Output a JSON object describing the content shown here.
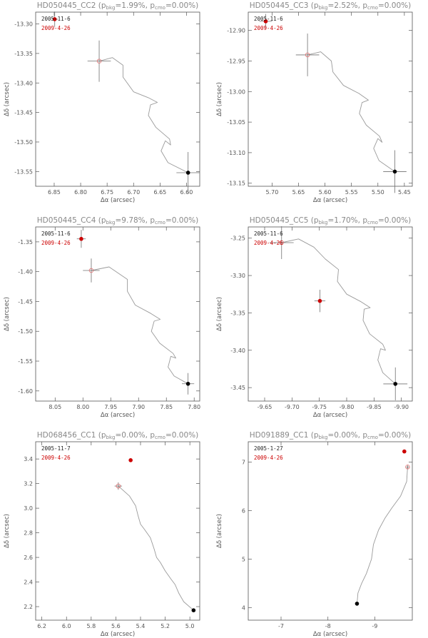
{
  "colors": {
    "frame": "#555555",
    "track": "#9a9a9a",
    "first_epoch": "#000000",
    "second_epoch": "#cc0000",
    "predicted": "#e07070",
    "errorbar": "#707070",
    "title": "#888888"
  },
  "chart_data": [
    {
      "type": "scatter",
      "title": "HD050445_CC2 (p_bkg=1.99%, p_cmo=0.00%)",
      "title_main": "HD050445_CC2 (p",
      "title_sub1": "bkg",
      "title_mid": "=1.99%, p",
      "title_sub2": "cmo",
      "title_end": "=0.00%)",
      "xlabel": "Δα (arcsec)",
      "ylabel": "Δδ (arcsec)",
      "xlim": [
        6.885,
        6.575
      ],
      "ylim": [
        -13.575,
        -13.28
      ],
      "xticks": [
        6.85,
        6.8,
        6.75,
        6.7,
        6.65,
        6.6
      ],
      "xtick_labels": [
        "6.85",
        "6.80",
        "6.75",
        "6.70",
        "6.65",
        "6.60"
      ],
      "yticks": [
        -13.3,
        -13.35,
        -13.4,
        -13.45,
        -13.5,
        -13.55
      ],
      "ytick_labels": [
        "-13.30",
        "-13.35",
        "-13.40",
        "-13.45",
        "-13.50",
        "-13.55"
      ],
      "legend": [
        "2005-11-6",
        "2009-4-26"
      ],
      "legend_placement": "top-left",
      "first_epoch": {
        "x": 6.597,
        "y": -13.552,
        "xerr": 0.022,
        "yerr": 0.035
      },
      "second_epoch": {
        "x": 6.849,
        "y": -13.292,
        "xerr": 0.006,
        "yerr": 0.013
      },
      "predicted": {
        "x": 6.765,
        "y": -13.363,
        "xerr": 0.022,
        "yerr": 0.035
      },
      "track": [
        [
          6.597,
          -13.552
        ],
        [
          6.635,
          -13.535
        ],
        [
          6.648,
          -13.515
        ],
        [
          6.64,
          -13.498
        ],
        [
          6.63,
          -13.505
        ],
        [
          6.632,
          -13.495
        ],
        [
          6.658,
          -13.475
        ],
        [
          6.672,
          -13.455
        ],
        [
          6.668,
          -13.437
        ],
        [
          6.655,
          -13.433
        ],
        [
          6.672,
          -13.425
        ],
        [
          6.7,
          -13.415
        ],
        [
          6.72,
          -13.39
        ],
        [
          6.72,
          -13.37
        ],
        [
          6.74,
          -13.357
        ],
        [
          6.765,
          -13.363
        ]
      ]
    },
    {
      "type": "scatter",
      "title": "HD050445_CC3 (p_bkg=2.52%, p_cmo=0.00%)",
      "title_main": "HD050445_CC3 (p",
      "title_sub1": "bkg",
      "title_mid": "=2.52%, p",
      "title_sub2": "cmo",
      "title_end": "=0.00%)",
      "xlabel": "Δα (arcsec)",
      "ylabel": "Δδ (arcsec)",
      "xlim": [
        5.745,
        5.435
      ],
      "ylim": [
        -13.155,
        -12.87
      ],
      "xticks": [
        5.7,
        5.65,
        5.6,
        5.55,
        5.5,
        5.45
      ],
      "xtick_labels": [
        "5.70",
        "5.65",
        "5.60",
        "5.55",
        "5.50",
        "5.45"
      ],
      "yticks": [
        -12.9,
        -12.95,
        -13.0,
        -13.05,
        -13.1,
        -13.15
      ],
      "ytick_labels": [
        "-12.90",
        "-12.95",
        "-13.00",
        "-13.05",
        "-13.10",
        "-13.15"
      ],
      "legend": [
        "2005-11-6",
        "2009-4-26"
      ],
      "legend_placement": "top-left",
      "first_epoch": {
        "x": 5.468,
        "y": -13.131,
        "xerr": 0.022,
        "yerr": 0.035
      },
      "second_epoch": {
        "x": 5.712,
        "y": -12.885,
        "xerr": 0.012,
        "yerr": 0.012
      },
      "predicted": {
        "x": 5.633,
        "y": -12.94,
        "xerr": 0.022,
        "yerr": 0.035
      },
      "track": [
        [
          5.468,
          -13.131
        ],
        [
          5.498,
          -13.113
        ],
        [
          5.508,
          -13.093
        ],
        [
          5.5,
          -13.077
        ],
        [
          5.492,
          -13.083
        ],
        [
          5.497,
          -13.073
        ],
        [
          5.522,
          -13.055
        ],
        [
          5.535,
          -13.036
        ],
        [
          5.53,
          -13.018
        ],
        [
          5.518,
          -13.014
        ],
        [
          5.536,
          -13.003
        ],
        [
          5.565,
          -12.99
        ],
        [
          5.585,
          -12.968
        ],
        [
          5.588,
          -12.95
        ],
        [
          5.608,
          -12.935
        ],
        [
          5.633,
          -12.94
        ]
      ]
    },
    {
      "type": "scatter",
      "title": "HD050445_CC4 (p_bkg=9.78%, p_cmo=0.00%)",
      "title_main": "HD050445_CC4 (p",
      "title_sub1": "bkg",
      "title_mid": "=9.78%, p",
      "title_sub2": "cmo",
      "title_end": "=0.00%)",
      "xlabel": "Δα (arcsec)",
      "ylabel": "Δδ (arcsec)",
      "xlim": [
        8.085,
        7.79
      ],
      "ylim": [
        -1.617,
        -1.325
      ],
      "xticks": [
        8.05,
        8.0,
        7.95,
        7.9,
        7.85,
        7.8
      ],
      "xtick_labels": [
        "8.05",
        "8.00",
        "7.95",
        "7.90",
        "7.85",
        "7.80"
      ],
      "yticks": [
        -1.35,
        -1.4,
        -1.45,
        -1.5,
        -1.55,
        -1.6
      ],
      "ytick_labels": [
        "-1.35",
        "-1.40",
        "-1.45",
        "-1.50",
        "-1.55",
        "-1.60"
      ],
      "legend": [
        "2005-11-6",
        "2009-4-26"
      ],
      "legend_placement": "top-left",
      "first_epoch": {
        "x": 7.811,
        "y": -1.588,
        "xerr": 0.011,
        "yerr": 0.018
      },
      "second_epoch": {
        "x": 8.003,
        "y": -1.345,
        "xerr": 0.008,
        "yerr": 0.015
      },
      "predicted": {
        "x": 7.985,
        "y": -1.398,
        "xerr": 0.015,
        "yerr": 0.02
      },
      "track": [
        [
          7.811,
          -1.588
        ],
        [
          7.836,
          -1.575
        ],
        [
          7.847,
          -1.56
        ],
        [
          7.842,
          -1.542
        ],
        [
          7.833,
          -1.545
        ],
        [
          7.838,
          -1.537
        ],
        [
          7.862,
          -1.52
        ],
        [
          7.877,
          -1.5
        ],
        [
          7.872,
          -1.483
        ],
        [
          7.861,
          -1.48
        ],
        [
          7.878,
          -1.47
        ],
        [
          7.906,
          -1.456
        ],
        [
          7.92,
          -1.433
        ],
        [
          7.92,
          -1.413
        ],
        [
          7.953,
          -1.392
        ],
        [
          7.985,
          -1.398
        ]
      ]
    },
    {
      "type": "scatter",
      "title": "HD050445_CC5 (p_bkg=1.70%, p_cmo=0.00%)",
      "title_main": "HD050445_CC5 (p",
      "title_sub1": "bkg",
      "title_mid": "=1.70%, p",
      "title_sub2": "cmo",
      "title_end": "=0.00%)",
      "xlabel": "Δα (arcsec)",
      "ylabel": "Δδ (arcsec)",
      "xlim": [
        -9.62,
        -9.92
      ],
      "ylim": [
        -3.468,
        -3.235
      ],
      "xticks": [
        -9.65,
        -9.7,
        -9.75,
        -9.8,
        -9.85,
        -9.9
      ],
      "xtick_labels": [
        "-9.65",
        "-9.70",
        "-9.75",
        "-9.80",
        "-9.85",
        "-9.90"
      ],
      "yticks": [
        -3.25,
        -3.3,
        -3.35,
        -3.4,
        -3.45
      ],
      "ytick_labels": [
        "-3.25",
        "-3.30",
        "-3.35",
        "-3.40",
        "-3.45"
      ],
      "legend": [
        "2005-11-6",
        "2009-4-26"
      ],
      "legend_placement": "top-left",
      "first_epoch": {
        "x": -9.889,
        "y": -3.445,
        "xerr": 0.022,
        "yerr": 0.022
      },
      "second_epoch": {
        "x": -9.751,
        "y": -3.334,
        "xerr": 0.01,
        "yerr": 0.015
      },
      "predicted": {
        "x": -9.681,
        "y": -3.256,
        "xerr": 0.022,
        "yerr": 0.022
      },
      "track": [
        [
          -9.889,
          -3.445
        ],
        [
          -9.866,
          -3.43
        ],
        [
          -9.857,
          -3.413
        ],
        [
          -9.862,
          -3.398
        ],
        [
          -9.871,
          -3.4
        ],
        [
          -9.866,
          -3.392
        ],
        [
          -9.842,
          -3.378
        ],
        [
          -9.83,
          -3.36
        ],
        [
          -9.832,
          -3.345
        ],
        [
          -9.843,
          -3.343
        ],
        [
          -9.826,
          -3.335
        ],
        [
          -9.8,
          -3.325
        ],
        [
          -9.783,
          -3.308
        ],
        [
          -9.785,
          -3.292
        ],
        [
          -9.761,
          -3.278
        ],
        [
          -9.74,
          -3.262
        ],
        [
          -9.712,
          -3.251
        ],
        [
          -9.681,
          -3.256
        ]
      ]
    },
    {
      "type": "scatter",
      "title": "HD068456_CC1 (p_bkg=0.00%, p_cmo=0.00%)",
      "title_main": "HD068456_CC1 (p",
      "title_sub1": "bkg",
      "title_mid": "=0.00%, p",
      "title_sub2": "cmo",
      "title_end": "=0.00%)",
      "xlabel": "Δα (arcsec)",
      "ylabel": "Δδ (arcsec)",
      "xlim": [
        6.25,
        4.92
      ],
      "ylim": [
        2.09,
        3.54
      ],
      "xticks": [
        6.2,
        6.0,
        5.8,
        5.6,
        5.4,
        5.2,
        5.0
      ],
      "xtick_labels": [
        "6.2",
        "6.0",
        "5.8",
        "5.6",
        "5.4",
        "5.2",
        "5.0"
      ],
      "yticks": [
        2.2,
        2.4,
        2.6,
        2.8,
        3.0,
        3.2,
        3.4
      ],
      "ytick_labels": [
        "2.2",
        "2.4",
        "2.6",
        "2.8",
        "3.0",
        "3.2",
        "3.4"
      ],
      "legend": [
        "2005-11-7",
        "2009-4-26"
      ],
      "legend_placement": "top-left",
      "first_epoch": {
        "x": 4.97,
        "y": 2.17,
        "xerr": 0.0,
        "yerr": 0.0
      },
      "second_epoch": {
        "x": 5.48,
        "y": 3.39,
        "xerr": 0.0,
        "yerr": 0.0
      },
      "predicted": {
        "x": 5.58,
        "y": 3.18,
        "xerr": 0.03,
        "yerr": 0.03
      },
      "track": [
        [
          4.97,
          2.17
        ],
        [
          5.05,
          2.24
        ],
        [
          5.09,
          2.31
        ],
        [
          5.12,
          2.38
        ],
        [
          5.15,
          2.42
        ],
        [
          5.2,
          2.49
        ],
        [
          5.24,
          2.56
        ],
        [
          5.27,
          2.6
        ],
        [
          5.29,
          2.67
        ],
        [
          5.32,
          2.76
        ],
        [
          5.37,
          2.83
        ],
        [
          5.4,
          2.87
        ],
        [
          5.42,
          2.94
        ],
        [
          5.44,
          3.02
        ],
        [
          5.49,
          3.1
        ],
        [
          5.58,
          3.18
        ]
      ]
    },
    {
      "type": "scatter",
      "title": "HD091889_CC1 (p_bkg=0.00%, p_cmo=0.00%)",
      "title_main": "HD091889_CC1 (p",
      "title_sub1": "bkg",
      "title_mid": "=0.00%, p",
      "title_sub2": "cmo",
      "title_end": "=0.00%)",
      "xlabel": "Δα (arcsec)",
      "ylabel": "Δδ (arcsec)",
      "xlim": [
        -6.3,
        -9.8
      ],
      "ylim": [
        3.74,
        7.42
      ],
      "xticks": [
        -7,
        -8,
        -9
      ],
      "xtick_labels": [
        "-7",
        "-8",
        "-9"
      ],
      "yticks": [
        4,
        5,
        6,
        7
      ],
      "ytick_labels": [
        "4",
        "5",
        "6",
        "7"
      ],
      "legend": [
        "2005-1-27",
        "2009-4-26"
      ],
      "legend_placement": "top-left",
      "first_epoch": {
        "x": -8.62,
        "y": 4.08,
        "xerr": 0.0,
        "yerr": 0.0
      },
      "second_epoch": {
        "x": -9.63,
        "y": 7.22,
        "xerr": 0.0,
        "yerr": 0.0
      },
      "predicted": {
        "x": -9.7,
        "y": 6.9,
        "xerr": 0.03,
        "yerr": 0.04
      },
      "track": [
        [
          -8.62,
          4.08
        ],
        [
          -8.64,
          4.3
        ],
        [
          -8.72,
          4.5
        ],
        [
          -8.82,
          4.7
        ],
        [
          -8.93,
          5.0
        ],
        [
          -8.97,
          5.3
        ],
        [
          -9.08,
          5.6
        ],
        [
          -9.22,
          5.85
        ],
        [
          -9.36,
          6.05
        ],
        [
          -9.55,
          6.3
        ],
        [
          -9.68,
          6.6
        ],
        [
          -9.7,
          6.9
        ]
      ]
    }
  ]
}
